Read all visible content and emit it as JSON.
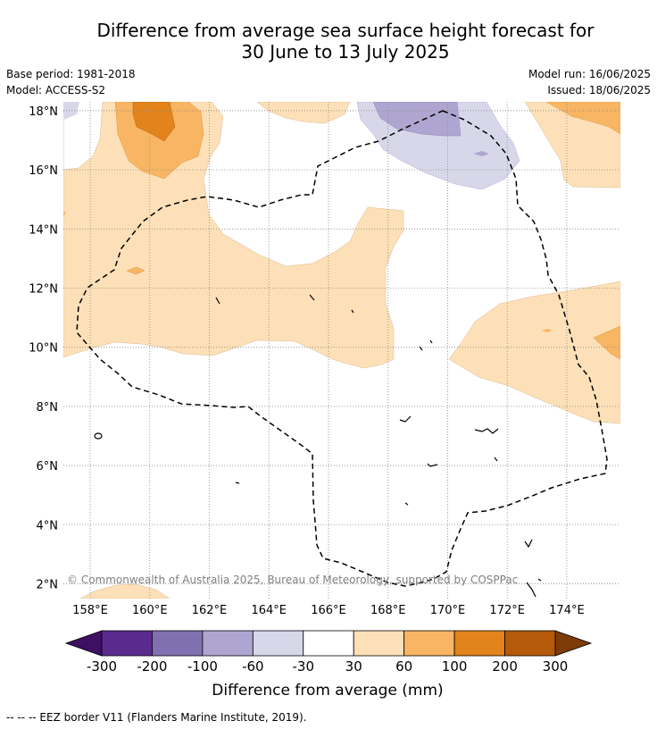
{
  "header": {
    "title_line1": "Difference from average sea surface height forecast for",
    "title_line2": "30 June to 13 July 2025",
    "base_period": "Base period: 1981-2018",
    "model": "Model: ACCESS-S2",
    "model_run": "Model run: 16/06/2025",
    "issued": "Issued: 18/06/2025"
  },
  "map": {
    "lat_labels": [
      "18°N",
      "16°N",
      "14°N",
      "12°N",
      "10°N",
      "8°N",
      "6°N",
      "4°N",
      "2°N"
    ],
    "lon_labels": [
      "158°E",
      "160°E",
      "162°E",
      "164°E",
      "166°E",
      "168°E",
      "170°E",
      "172°E",
      "174°E"
    ],
    "lat_range": [
      1.5,
      18.3
    ],
    "lon_range": [
      157.1,
      175.8
    ],
    "grid": true,
    "copyright": "© Commonwealth of Australia 2025, Bureau of Meteorology, supported by COSPPac"
  },
  "colorbar": {
    "tick_labels": [
      "-300",
      "-200",
      "-100",
      "-60",
      "-30",
      "30",
      "60",
      "100",
      "200",
      "300"
    ],
    "label": "Difference from average (mm)",
    "colors": [
      "#3f0f63",
      "#5b2a8e",
      "#8170b0",
      "#aea6d0",
      "#d8d7ea",
      "#ffffff",
      "#fde0b7",
      "#f8b563",
      "#e2831c",
      "#b5590a",
      "#7f3b08"
    ]
  },
  "legend": {
    "eez": "-- -- -- EEZ border V11 (Flanders Marine Institute, 2019)."
  }
}
